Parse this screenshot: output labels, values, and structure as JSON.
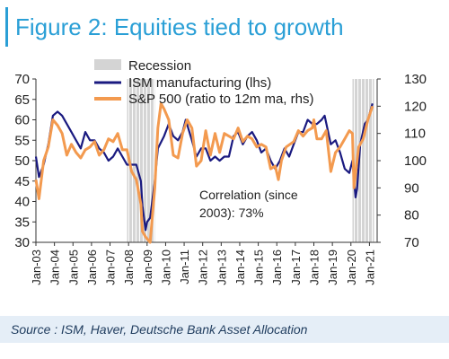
{
  "title": "Figure 2: Equities tied to growth",
  "source": "Source : ISM, Haver, Deutsche Bank Asset Allocation",
  "chart_data": {
    "type": "line",
    "title": "Figure 2: Equities tied to growth",
    "x_start": "Jan-03",
    "x_ticks": [
      "Jan-03",
      "Jan-04",
      "Jan-05",
      "Jan-06",
      "Jan-07",
      "Jan-08",
      "Jan-09",
      "Jan-10",
      "Jan-11",
      "Jan-12",
      "Jan-13",
      "Jan-14",
      "Jan-15",
      "Jan-16",
      "Jan-17",
      "Jan-18",
      "Jan-19",
      "Jan-20",
      "Jan-21"
    ],
    "y_left": {
      "label": "",
      "lim": [
        30,
        70
      ],
      "ticks": [
        30,
        35,
        40,
        45,
        50,
        55,
        60,
        65,
        70
      ]
    },
    "y_right": {
      "label": "",
      "lim": [
        70,
        130
      ],
      "ticks": [
        70,
        80,
        90,
        100,
        110,
        120,
        130
      ]
    },
    "recessions": [
      {
        "start": "Dec-07",
        "end": "Jun-09"
      },
      {
        "start": "Feb-20",
        "end": "Apr-21"
      }
    ],
    "legend": [
      "Recession",
      "ISM manufacturing (lhs)",
      "S&P 500 (ratio to 12m ma, rhs)"
    ],
    "legend_position": "top",
    "annotation": [
      "Correlation (since",
      "2003): 73%"
    ],
    "colors": {
      "ism": "#1a1a80",
      "sp500": "#f39a4f",
      "recession": "#d4d4d4"
    },
    "series": [
      {
        "name": "ISM manufacturing (lhs)",
        "axis": "left",
        "color": "#1a1a80",
        "points": [
          [
            "Jan-03",
            51
          ],
          [
            "Mar-03",
            46
          ],
          [
            "Jun-03",
            49
          ],
          [
            "Sep-03",
            54
          ],
          [
            "Dec-03",
            61
          ],
          [
            "Mar-04",
            62
          ],
          [
            "Jun-04",
            61
          ],
          [
            "Sep-04",
            59
          ],
          [
            "Dec-04",
            57
          ],
          [
            "Mar-05",
            55
          ],
          [
            "Jun-05",
            53
          ],
          [
            "Sep-05",
            57
          ],
          [
            "Dec-05",
            55
          ],
          [
            "Mar-06",
            55
          ],
          [
            "Jun-06",
            53
          ],
          [
            "Sep-06",
            52
          ],
          [
            "Dec-06",
            50
          ],
          [
            "Mar-07",
            51
          ],
          [
            "Jun-07",
            53
          ],
          [
            "Sep-07",
            51
          ],
          [
            "Dec-07",
            49
          ],
          [
            "Mar-08",
            49
          ],
          [
            "Jun-08",
            49
          ],
          [
            "Sep-08",
            45
          ],
          [
            "Oct-08",
            39
          ],
          [
            "Dec-08",
            33
          ],
          [
            "Jan-09",
            35
          ],
          [
            "Mar-09",
            36
          ],
          [
            "Jun-09",
            45
          ],
          [
            "Aug-09",
            53
          ],
          [
            "Dec-09",
            56
          ],
          [
            "Mar-10",
            59
          ],
          [
            "Jun-10",
            56
          ],
          [
            "Sep-10",
            55
          ],
          [
            "Dec-10",
            57
          ],
          [
            "Feb-11",
            60
          ],
          [
            "Jun-11",
            55
          ],
          [
            "Sep-11",
            51
          ],
          [
            "Dec-11",
            53
          ],
          [
            "Mar-12",
            53
          ],
          [
            "Jun-12",
            50
          ],
          [
            "Sep-12",
            51
          ],
          [
            "Dec-12",
            50
          ],
          [
            "Mar-13",
            51
          ],
          [
            "Jun-13",
            51
          ],
          [
            "Sep-13",
            56
          ],
          [
            "Dec-13",
            57
          ],
          [
            "Mar-14",
            54
          ],
          [
            "Jun-14",
            56
          ],
          [
            "Sep-14",
            57
          ],
          [
            "Dec-14",
            55
          ],
          [
            "Mar-15",
            52
          ],
          [
            "Jun-15",
            53
          ],
          [
            "Sep-15",
            50
          ],
          [
            "Dec-15",
            48
          ],
          [
            "Mar-16",
            50
          ],
          [
            "Jun-16",
            53
          ],
          [
            "Sep-16",
            51
          ],
          [
            "Dec-16",
            54
          ],
          [
            "Mar-17",
            57
          ],
          [
            "Jun-17",
            57
          ],
          [
            "Sep-17",
            60
          ],
          [
            "Dec-17",
            59
          ],
          [
            "Mar-18",
            59
          ],
          [
            "Jun-18",
            60
          ],
          [
            "Aug-18",
            61
          ],
          [
            "Dec-18",
            54
          ],
          [
            "Mar-19",
            55
          ],
          [
            "Jun-19",
            52
          ],
          [
            "Sep-19",
            48
          ],
          [
            "Dec-19",
            47
          ],
          [
            "Feb-20",
            50
          ],
          [
            "Apr-20",
            41
          ],
          [
            "May-20",
            43
          ],
          [
            "Jul-20",
            54
          ],
          [
            "Oct-20",
            59
          ],
          [
            "Dec-20",
            60
          ],
          [
            "Mar-21",
            64
          ]
        ]
      },
      {
        "name": "S&P 500 (ratio to 12m ma, rhs)",
        "axis": "right",
        "color": "#f39a4f",
        "points": [
          [
            "Jan-03",
            93
          ],
          [
            "Mar-03",
            86
          ],
          [
            "Jun-03",
            100
          ],
          [
            "Sep-03",
            105
          ],
          [
            "Dec-03",
            115
          ],
          [
            "Mar-04",
            113
          ],
          [
            "Jun-04",
            110
          ],
          [
            "Sep-04",
            102
          ],
          [
            "Dec-04",
            106
          ],
          [
            "Mar-05",
            103
          ],
          [
            "Jun-05",
            101
          ],
          [
            "Sep-05",
            104
          ],
          [
            "Dec-05",
            105
          ],
          [
            "Mar-06",
            107
          ],
          [
            "Jun-06",
            102
          ],
          [
            "Sep-06",
            104
          ],
          [
            "Dec-06",
            108
          ],
          [
            "Mar-07",
            107
          ],
          [
            "Jun-07",
            110
          ],
          [
            "Sep-07",
            104
          ],
          [
            "Dec-07",
            104
          ],
          [
            "Mar-08",
            96
          ],
          [
            "Jun-08",
            93
          ],
          [
            "Sep-08",
            84
          ],
          [
            "Oct-08",
            74
          ],
          [
            "Dec-08",
            72
          ],
          [
            "Mar-09",
            70
          ],
          [
            "Jun-09",
            90
          ],
          [
            "Aug-09",
            112
          ],
          [
            "Oct-09",
            121
          ],
          [
            "Dec-09",
            119
          ],
          [
            "Mar-10",
            115
          ],
          [
            "Jun-10",
            102
          ],
          [
            "Sep-10",
            101
          ],
          [
            "Dec-10",
            110
          ],
          [
            "Mar-11",
            115
          ],
          [
            "Jun-11",
            112
          ],
          [
            "Sep-11",
            98
          ],
          [
            "Dec-11",
            100
          ],
          [
            "Mar-12",
            111
          ],
          [
            "Jun-12",
            102
          ],
          [
            "Sep-12",
            110
          ],
          [
            "Dec-12",
            103
          ],
          [
            "Mar-13",
            110
          ],
          [
            "Jun-13",
            109
          ],
          [
            "Sep-13",
            108
          ],
          [
            "Dec-13",
            112
          ],
          [
            "Mar-14",
            107
          ],
          [
            "Jun-14",
            109
          ],
          [
            "Sep-14",
            108
          ],
          [
            "Dec-14",
            105
          ],
          [
            "Mar-15",
            106
          ],
          [
            "Jun-15",
            105
          ],
          [
            "Sep-15",
            97
          ],
          [
            "Dec-15",
            98
          ],
          [
            "Feb-16",
            93
          ],
          [
            "Apr-16",
            100
          ],
          [
            "Jul-16",
            105
          ],
          [
            "Dec-16",
            107
          ],
          [
            "Mar-17",
            111
          ],
          [
            "Jun-17",
            109
          ],
          [
            "Sep-17",
            111
          ],
          [
            "Dec-17",
            112
          ],
          [
            "Jan-18",
            115
          ],
          [
            "Mar-18",
            108
          ],
          [
            "Jun-18",
            108
          ],
          [
            "Sep-18",
            111
          ],
          [
            "Dec-18",
            96
          ],
          [
            "Mar-19",
            103
          ],
          [
            "Jun-19",
            105
          ],
          [
            "Sep-19",
            108
          ],
          [
            "Dec-19",
            111
          ],
          [
            "Feb-20",
            110
          ],
          [
            "Mar-20",
            90
          ],
          [
            "Apr-20",
            95
          ],
          [
            "Jun-20",
            105
          ],
          [
            "Sep-20",
            108
          ],
          [
            "Dec-20",
            115
          ],
          [
            "Mar-21",
            120
          ]
        ]
      }
    ]
  }
}
